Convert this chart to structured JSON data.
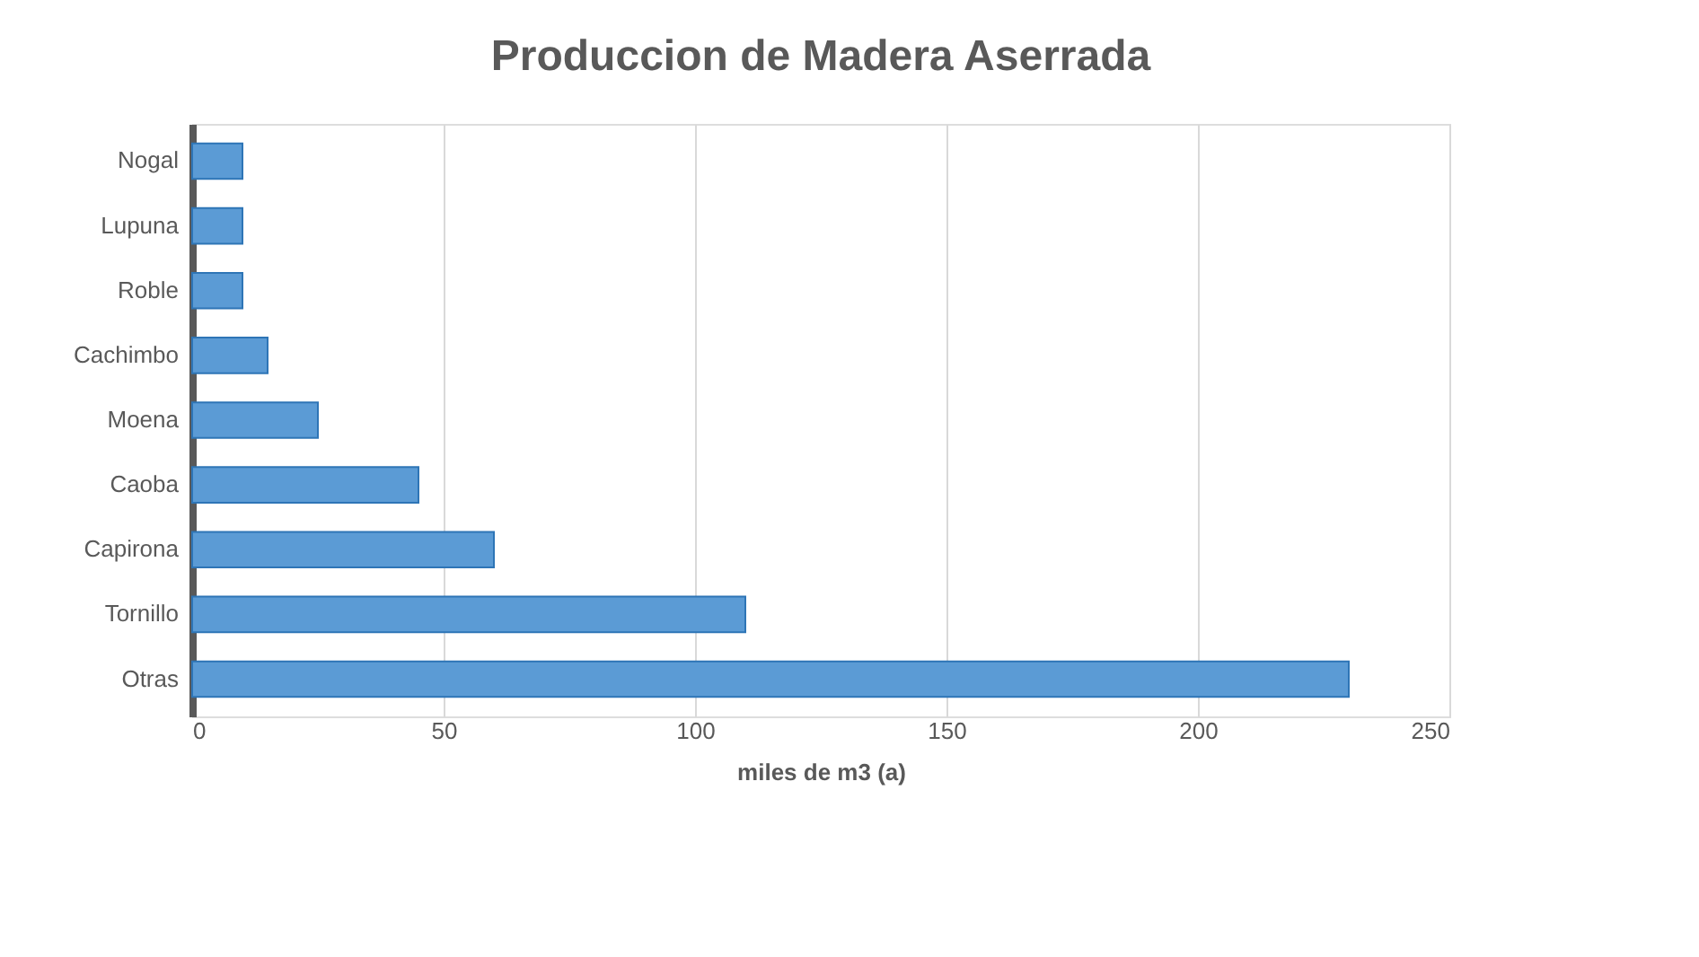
{
  "chart_data": {
    "type": "bar",
    "orientation": "horizontal",
    "title": "Produccion de Madera Aserrada",
    "xlabel": "miles de m3 (a)",
    "categories": [
      "Nogal",
      "Lupuna",
      "Roble",
      "Cachimbo",
      "Moena",
      "Caoba",
      "Capirona",
      "Tornillo",
      "Otras"
    ],
    "values": [
      10,
      10,
      10,
      15,
      25,
      45,
      60,
      110,
      230
    ],
    "color": "#5b9bd5",
    "xlim": [
      0,
      250
    ],
    "xticks": [
      0,
      50,
      100,
      150,
      200,
      250
    ],
    "grid": "x"
  }
}
